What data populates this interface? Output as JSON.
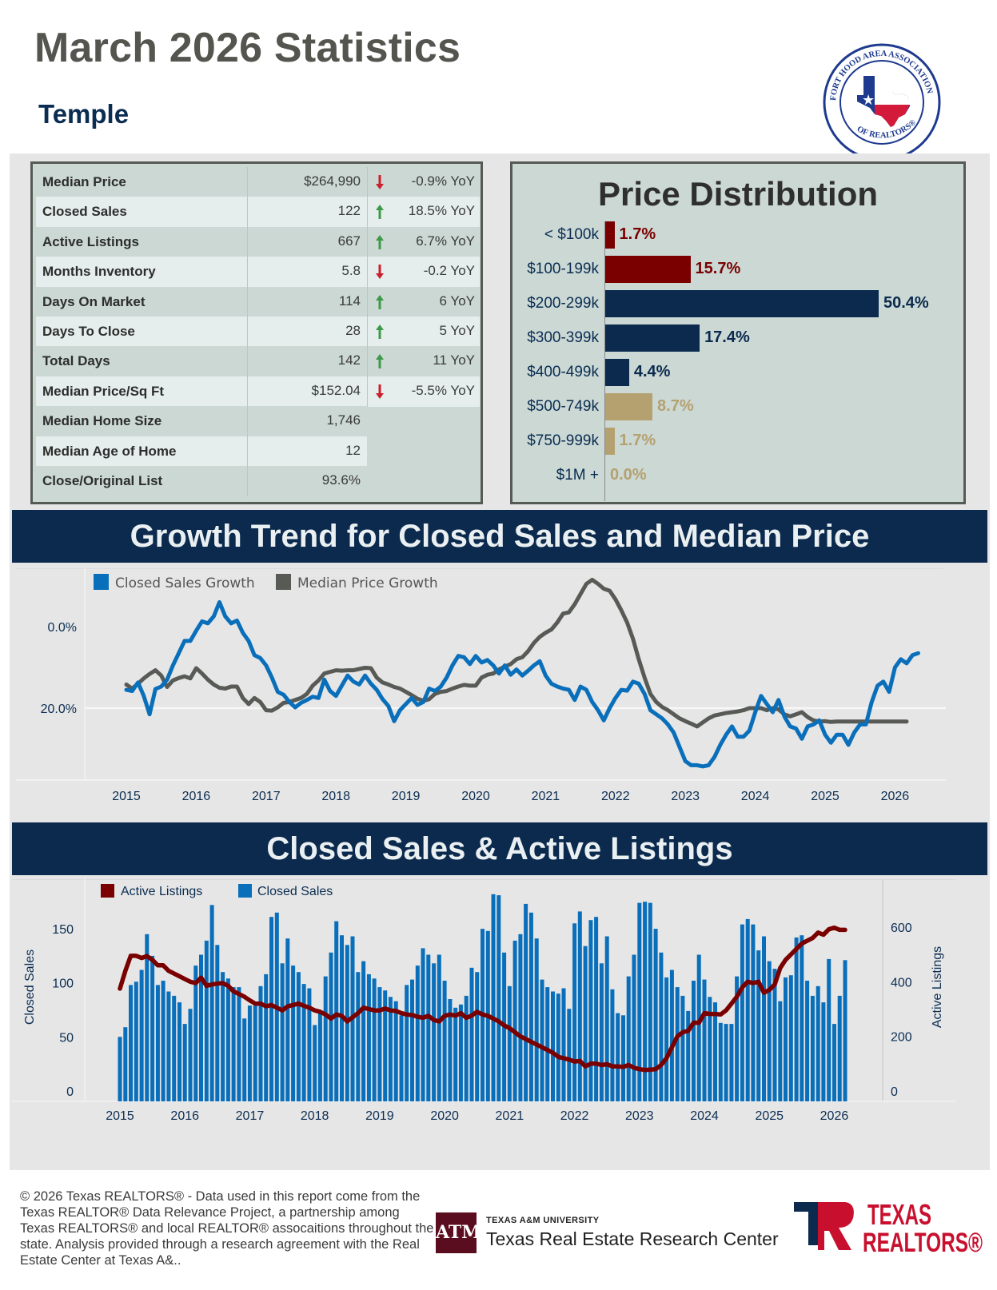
{
  "header": {
    "title": "March 2026 Statistics",
    "city": "Temple",
    "logo_text_top": "FORT HOOD AREA ASSOCIATION",
    "logo_text_bottom": "OF REALTORS®"
  },
  "colors": {
    "navy": "#0b2a4e",
    "maroon": "#7a0000",
    "tan": "#b5a170",
    "blue": "#0a6fba",
    "gray_line": "#575a55",
    "up_arrow": "#3d9a48",
    "down_arrow": "#c8202e"
  },
  "stats": [
    {
      "label": "Median Price",
      "value": "$264,990",
      "change": "-0.9% YoY",
      "direction": "down"
    },
    {
      "label": "Closed Sales",
      "value": "122",
      "change": "18.5% YoY",
      "direction": "up"
    },
    {
      "label": "Active Listings",
      "value": "667",
      "change": "6.7% YoY",
      "direction": "up"
    },
    {
      "label": "Months Inventory",
      "value": "5.8",
      "change": "-0.2 YoY",
      "direction": "down"
    },
    {
      "label": "Days On Market",
      "value": "114",
      "change": "6 YoY",
      "direction": "up"
    },
    {
      "label": "Days To Close",
      "value": "28",
      "change": "5 YoY",
      "direction": "up"
    },
    {
      "label": "Total Days",
      "value": "142",
      "change": "11 YoY",
      "direction": "up"
    },
    {
      "label": "Median Price/Sq Ft",
      "value": "$152.04",
      "change": "-5.5% YoY",
      "direction": "down"
    },
    {
      "label": "Median Home Size",
      "value": "1,746",
      "change": "",
      "direction": ""
    },
    {
      "label": "Median Age of Home",
      "value": "12",
      "change": "",
      "direction": ""
    },
    {
      "label": "Close/Original List",
      "value": "93.6%",
      "change": "",
      "direction": ""
    }
  ],
  "price_distribution": {
    "title": "Price Distribution",
    "bins": [
      {
        "label": "< $100k",
        "value": 1.7,
        "display": "1.7%",
        "color": "#7a0000"
      },
      {
        "label": "$100-199k",
        "value": 15.7,
        "display": "15.7%",
        "color": "#7a0000"
      },
      {
        "label": "$200-299k",
        "value": 50.4,
        "display": "50.4%",
        "color": "#0b2a4e"
      },
      {
        "label": "$300-399k",
        "value": 17.4,
        "display": "17.4%",
        "color": "#0b2a4e"
      },
      {
        "label": "$400-499k",
        "value": 4.4,
        "display": "4.4%",
        "color": "#0b2a4e"
      },
      {
        "label": "$500-749k",
        "value": 8.7,
        "display": "8.7%",
        "color": "#b5a170"
      },
      {
        "label": "$750-999k",
        "value": 1.7,
        "display": "1.7%",
        "color": "#b5a170"
      },
      {
        "label": "$1M +",
        "value": 0.0,
        "display": "0.0%",
        "color": "#b5a170"
      }
    ]
  },
  "sections": {
    "growth_title": "Growth Trend for Closed Sales and Median Price",
    "sales_title": "Closed Sales & Active Listings"
  },
  "chart_data": [
    {
      "type": "line",
      "title": "Growth Trend for Closed Sales and Median Price",
      "xlabel": "",
      "ylabel": "",
      "x_start": "2015-01",
      "x_frequency": "monthly",
      "x_ticks": [
        "2015",
        "2016",
        "2017",
        "2018",
        "2019",
        "2020",
        "2021",
        "2022",
        "2023",
        "2024",
        "2025",
        "2026"
      ],
      "y_ticks": [
        "0.0%",
        "20.0%"
      ],
      "ylim": [
        -15,
        32
      ],
      "grid": true,
      "legend": "top-left",
      "series": [
        {
          "name": "Closed Sales Growth",
          "color": "#0a6fba",
          "values": [
            4.5,
            4.2,
            6.3,
            3.0,
            -1.5,
            4.7,
            5.3,
            7.0,
            10.5,
            13.5,
            16.5,
            16.5,
            19.0,
            21.3,
            20.8,
            22.5,
            26.0,
            22.5,
            20.8,
            21.5,
            18.5,
            16.5,
            13.0,
            12.3,
            10.5,
            7.5,
            4.0,
            3.3,
            1.5,
            0.2,
            1.3,
            2.0,
            2.8,
            2.5,
            7.0,
            4.2,
            3.0,
            5.5,
            8.0,
            6.5,
            5.8,
            8.0,
            6.0,
            4.5,
            2.2,
            0.5,
            -3.2,
            -0.5,
            1.0,
            2.5,
            0.8,
            1.5,
            4.8,
            4.2,
            5.3,
            7.5,
            10.5,
            12.8,
            12.5,
            10.8,
            12.8,
            11.2,
            11.8,
            10.5,
            8.5,
            10.5,
            8.2,
            9.5,
            8.0,
            9.2,
            10.5,
            11.5,
            8.0,
            6.0,
            5.3,
            4.8,
            4.5,
            2.0,
            5.3,
            4.5,
            1.5,
            -0.5,
            -3.0,
            0.0,
            2.5,
            4.5,
            4.3,
            6.5,
            6.0,
            3.5,
            -0.5,
            -1.5,
            -2.5,
            -4.0,
            -6.0,
            -9.5,
            -13.0,
            -14.0,
            -14.0,
            -14.3,
            -14.0,
            -12.0,
            -9.0,
            -6.5,
            -4.5,
            -7.0,
            -7.0,
            -5.5,
            -1.0,
            3.0,
            1.0,
            -1.0,
            2.0,
            -2.0,
            -4.5,
            -5.0,
            -7.5,
            -4.5,
            -4.0,
            -3.0,
            -6.5,
            -8.5,
            -6.5,
            -6.5,
            -9.0,
            -6.0,
            -4.0,
            -4.0,
            1.5,
            5.5,
            6.5,
            4.0,
            10.0,
            12.0,
            11.0,
            13.0,
            13.5
          ]
        },
        {
          "name": "Median Price Growth",
          "color": "#575a55",
          "values": [
            5.8,
            4.8,
            6.0,
            7.3,
            8.4,
            9.3,
            8.0,
            5.2,
            6.8,
            7.4,
            7.8,
            7.3,
            9.8,
            8.5,
            7.0,
            5.8,
            5.0,
            4.8,
            5.3,
            5.3,
            2.5,
            1.0,
            2.5,
            1.5,
            -0.5,
            -0.6,
            0.2,
            1.3,
            1.5,
            2.0,
            2.5,
            3.5,
            5.5,
            6.8,
            8.5,
            8.9,
            9.3,
            9.2,
            9.3,
            9.3,
            9.6,
            9.9,
            9.8,
            7.5,
            6.3,
            5.8,
            5.2,
            4.8,
            4.0,
            3.2,
            2.3,
            1.8,
            2.2,
            3.5,
            4.0,
            4.2,
            4.8,
            5.3,
            5.7,
            5.5,
            5.5,
            7.5,
            8.2,
            8.5,
            9.5,
            10.2,
            10.8,
            12.0,
            12.5,
            14.0,
            16.0,
            17.5,
            18.5,
            19.3,
            21.0,
            23.2,
            23.5,
            25.5,
            28.0,
            30.5,
            31.5,
            30.5,
            29.3,
            28.8,
            26.7,
            24.0,
            21.0,
            17.0,
            12.0,
            7.5,
            3.5,
            1.5,
            0.3,
            -0.5,
            -1.5,
            -2.5,
            -3.2,
            -3.8,
            -4.5,
            -3.5,
            -2.5,
            -1.8,
            -1.5,
            -1.2,
            -1.0,
            -0.8,
            -0.5,
            0.0,
            0.0,
            0.0,
            -0.5,
            0.0,
            -0.3,
            -1.5,
            -2.0,
            -1.5,
            -1.0,
            -2.2,
            -3.0,
            -3.3,
            -3.2,
            -3.4,
            -3.3,
            -3.3,
            -3.3,
            -3.3,
            -3.3,
            -3.3,
            -3.3,
            -3.3,
            -3.3,
            -3.3,
            -3.3,
            -3.3,
            -3.3
          ]
        }
      ]
    },
    {
      "type": "bar",
      "title": "Closed Sales & Active Listings",
      "xlabel": "",
      "ylabel": "Closed Sales",
      "y2label": "Active Listings",
      "x_start": "2015-01",
      "x_frequency": "monthly",
      "x_ticks": [
        "2015",
        "2016",
        "2017",
        "2018",
        "2019",
        "2020",
        "2021",
        "2022",
        "2023",
        "2024",
        "2025",
        "2026"
      ],
      "y_ticks": [
        "0",
        "50",
        "100",
        "150"
      ],
      "y2_ticks": [
        "0",
        "200",
        "400",
        "600"
      ],
      "ylim": [
        0,
        190
      ],
      "y2lim": [
        0,
        760
      ],
      "grid": false,
      "legend": "top-left",
      "series": [
        {
          "name": "Closed Sales",
          "axis": "left",
          "kind": "bar",
          "color": "#0a6fba",
          "values": [
            50,
            59,
            98,
            101,
            112,
            145,
            125,
            98,
            102,
            92,
            88,
            82,
            62,
            76,
            116,
            126,
            139,
            172,
            135,
            110,
            104,
            96,
            96,
            67,
            79,
            79,
            97,
            108,
            161,
            165,
            118,
            141,
            116,
            110,
            99,
            95,
            61,
            73,
            106,
            128,
            157,
            144,
            135,
            143,
            110,
            120,
            108,
            104,
            96,
            93,
            87,
            83,
            70,
            98,
            103,
            116,
            132,
            126,
            118,
            126,
            102,
            85,
            77,
            80,
            88,
            114,
            110,
            150,
            148,
            182,
            181,
            128,
            97,
            139,
            145,
            173,
            165,
            141,
            103,
            96,
            92,
            90,
            95,
            76,
            155,
            166,
            134,
            158,
            161,
            118,
            143,
            94,
            72,
            70,
            106,
            126,
            174,
            175,
            174,
            150,
            128,
            105,
            112,
            96,
            88,
            74,
            102,
            126,
            103,
            87,
            82,
            63,
            62,
            62,
            106,
            154,
            159,
            154,
            130,
            143,
            120,
            113,
            83,
            105,
            107,
            142,
            144,
            102,
            88,
            97,
            82,
            122,
            62,
            88,
            121
          ]
        },
        {
          "name": "Active Listings",
          "axis": "right",
          "kind": "line",
          "color": "#7a0000",
          "values": [
            375,
            440,
            495,
            495,
            487,
            494,
            480,
            460,
            460,
            440,
            430,
            420,
            410,
            400,
            395,
            415,
            385,
            390,
            393,
            395,
            385,
            365,
            355,
            345,
            332,
            320,
            320,
            310,
            315,
            305,
            295,
            310,
            315,
            320,
            312,
            305,
            295,
            290,
            280,
            265,
            280,
            275,
            255,
            270,
            285,
            305,
            300,
            295,
            295,
            302,
            295,
            293,
            285,
            280,
            278,
            272,
            268,
            275,
            260,
            255,
            275,
            280,
            276,
            285,
            268,
            276,
            290,
            280,
            275,
            265,
            255,
            240,
            230,
            215,
            200,
            190,
            180,
            170,
            160,
            150,
            140,
            125,
            120,
            115,
            108,
            110,
            90,
            100,
            100,
            95,
            98,
            90,
            90,
            88,
            95,
            85,
            80,
            77,
            78,
            80,
            95,
            120,
            160,
            200,
            215,
            220,
            250,
            250,
            285,
            282,
            282,
            280,
            295,
            320,
            345,
            380,
            400,
            395,
            400,
            360,
            370,
            390,
            450,
            480,
            500,
            520,
            540,
            550,
            560,
            580,
            572,
            592,
            598,
            590,
            590
          ]
        }
      ]
    }
  ],
  "footer": {
    "disclaimer": "© 2026 Texas REALTORS® - Data used in this report come from the Texas REALTOR® Data Relevance Project, a partnership among Texas REALTORS® and local REALTOR® assocaitions throughout the state. Analysis provided through a research agreement with the Real Estate Center at Texas A&..",
    "tamu_small": "TEXAS A&M UNIVERSITY",
    "tamu_big": "Texas Real Estate Research Center",
    "tamu_badge": "ATM",
    "tr_line1": "TEXAS",
    "tr_line2": "REALTORS®"
  }
}
